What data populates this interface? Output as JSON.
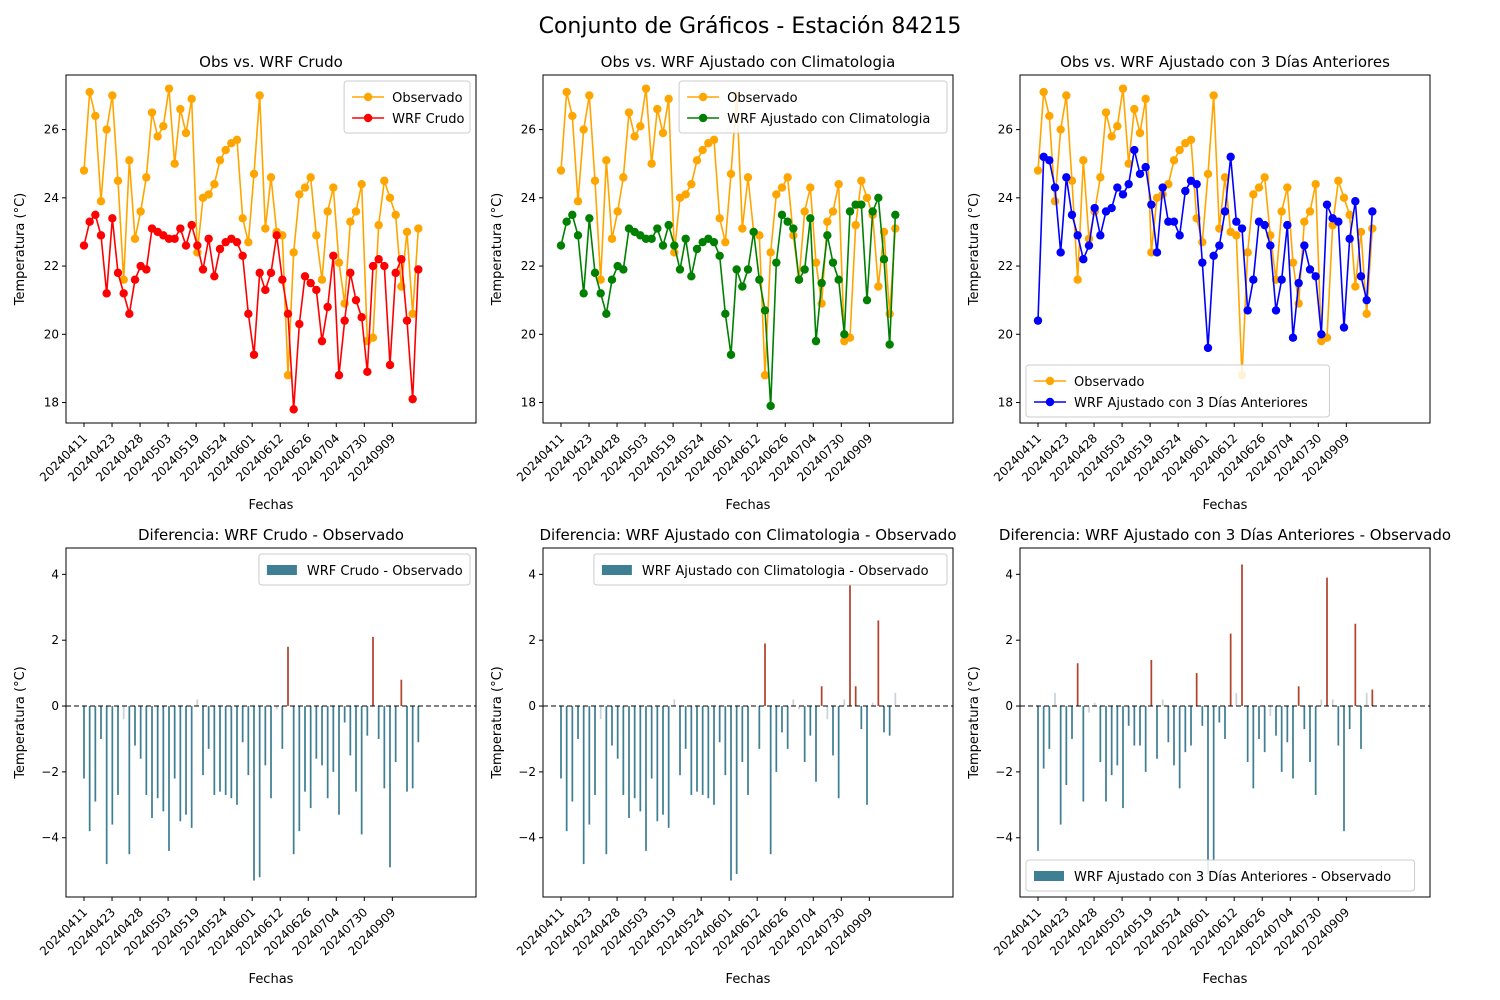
{
  "figure": {
    "title": "Conjunto de Gráficos - Estación 84215"
  },
  "colors": {
    "observed": "#ffa500",
    "raw": "#ff0000",
    "clim": "#008000",
    "prev3": "#0000ff",
    "bar_neg": "#3f7f93",
    "bar_pos": "#b2432f",
    "bar_light": "#c9d4d8"
  },
  "ticks": {
    "dates": [
      "20240411",
      "20240423",
      "20240428",
      "20240503",
      "20240519",
      "20240524",
      "20240601",
      "20240612",
      "20240626",
      "20240704",
      "20240730",
      "20240909"
    ],
    "line_y": [
      "18",
      "20",
      "22",
      "24",
      "26"
    ],
    "bar_y": [
      "−4",
      "−2",
      "0",
      "2",
      "4"
    ]
  },
  "chart_data": [
    {
      "type": "line",
      "title": "Obs vs. WRF Crudo",
      "xlabel": "Fechas",
      "ylabel": "Temperatura (°C)",
      "ylim": [
        17.4,
        27.6
      ],
      "legend_position": "upper right",
      "series": [
        {
          "name": "Observado",
          "color": "#ffa500",
          "values": [
            24.8,
            27.1,
            26.4,
            23.9,
            26.0,
            27.0,
            24.5,
            21.6,
            25.1,
            22.8,
            23.6,
            24.6,
            26.5,
            25.8,
            26.1,
            27.2,
            25.0,
            26.6,
            25.9,
            26.9,
            22.4,
            24.0,
            24.1,
            24.4,
            25.1,
            25.4,
            25.6,
            25.7,
            23.4,
            22.7,
            24.7,
            27.0,
            23.1,
            24.6,
            23.0,
            22.9,
            18.8,
            22.4,
            24.1,
            24.3,
            24.6,
            22.9,
            21.6,
            23.6,
            24.3,
            22.1,
            20.9,
            23.3,
            23.6,
            24.4,
            19.8,
            19.9,
            23.2,
            24.5,
            24.0,
            23.5,
            21.4,
            23.0,
            20.6,
            23.1
          ]
        },
        {
          "name": "WRF Crudo",
          "color": "#ff0000",
          "values": [
            22.6,
            23.3,
            23.5,
            22.9,
            21.2,
            23.4,
            21.8,
            21.2,
            20.6,
            21.6,
            22.0,
            21.9,
            23.1,
            23.0,
            22.9,
            22.8,
            22.8,
            23.1,
            22.6,
            23.2,
            22.6,
            21.9,
            22.8,
            21.7,
            22.5,
            22.7,
            22.8,
            22.7,
            22.3,
            20.6,
            19.4,
            21.8,
            21.3,
            21.8,
            22.9,
            21.6,
            20.6,
            17.8,
            20.3,
            21.7,
            21.5,
            21.3,
            19.8,
            20.8,
            22.3,
            18.8,
            20.4,
            21.8,
            21.0,
            20.5,
            18.9,
            22.0,
            22.2,
            22.0,
            19.1,
            21.8,
            22.2,
            20.4,
            18.1,
            21.9
          ]
        }
      ]
    },
    {
      "type": "line",
      "title": "Obs vs. WRF Ajustado con Climatologia",
      "xlabel": "Fechas",
      "ylabel": "Temperatura (°C)",
      "ylim": [
        17.4,
        27.6
      ],
      "legend_position": "upper right",
      "series": [
        {
          "name": "Observado",
          "color": "#ffa500",
          "values": [
            24.8,
            27.1,
            26.4,
            23.9,
            26.0,
            27.0,
            24.5,
            21.6,
            25.1,
            22.8,
            23.6,
            24.6,
            26.5,
            25.8,
            26.1,
            27.2,
            25.0,
            26.6,
            25.9,
            26.9,
            22.4,
            24.0,
            24.1,
            24.4,
            25.1,
            25.4,
            25.6,
            25.7,
            23.4,
            22.7,
            24.7,
            27.0,
            23.1,
            24.6,
            23.0,
            22.9,
            18.8,
            22.4,
            24.1,
            24.3,
            24.6,
            22.9,
            21.6,
            23.6,
            24.3,
            22.1,
            20.9,
            23.3,
            23.6,
            24.4,
            19.8,
            19.9,
            23.2,
            24.5,
            24.0,
            23.5,
            21.4,
            23.0,
            20.6,
            23.1
          ]
        },
        {
          "name": "WRF Ajustado con Climatologia",
          "color": "#008000",
          "values": [
            22.6,
            23.3,
            23.5,
            22.9,
            21.2,
            23.4,
            21.8,
            21.2,
            20.6,
            21.6,
            22.0,
            21.9,
            23.1,
            23.0,
            22.9,
            22.8,
            22.8,
            23.1,
            22.6,
            23.2,
            22.6,
            21.9,
            22.8,
            21.7,
            22.5,
            22.7,
            22.8,
            22.7,
            22.3,
            20.6,
            19.4,
            21.9,
            21.4,
            21.9,
            23.0,
            21.6,
            20.7,
            17.9,
            22.1,
            23.5,
            23.3,
            23.1,
            21.6,
            21.9,
            23.4,
            19.8,
            21.5,
            22.9,
            22.1,
            21.6,
            20.0,
            23.6,
            23.8,
            23.8,
            21.0,
            23.6,
            24.0,
            22.2,
            19.7,
            23.5
          ]
        }
      ]
    },
    {
      "type": "line",
      "title": "Obs vs. WRF Ajustado con 3 Días Anteriores",
      "xlabel": "Fechas",
      "ylabel": "Temperatura (°C)",
      "ylim": [
        17.4,
        27.6
      ],
      "legend_position": "lower left",
      "series": [
        {
          "name": "Observado",
          "color": "#ffa500",
          "values": [
            24.8,
            27.1,
            26.4,
            23.9,
            26.0,
            27.0,
            24.5,
            21.6,
            25.1,
            22.8,
            23.6,
            24.6,
            26.5,
            25.8,
            26.1,
            27.2,
            25.0,
            26.6,
            25.9,
            26.9,
            22.4,
            24.0,
            24.1,
            24.4,
            25.1,
            25.4,
            25.6,
            25.7,
            23.4,
            22.7,
            24.7,
            27.0,
            23.1,
            24.6,
            23.0,
            22.9,
            18.8,
            22.4,
            24.1,
            24.3,
            24.6,
            22.9,
            21.6,
            23.6,
            24.3,
            22.1,
            20.9,
            23.3,
            23.6,
            24.4,
            19.8,
            19.9,
            23.2,
            24.5,
            24.0,
            23.5,
            21.4,
            23.0,
            20.6,
            23.1
          ]
        },
        {
          "name": "WRF Ajustado con 3 Días Anteriores",
          "color": "#0000ff",
          "values": [
            20.4,
            25.2,
            25.1,
            24.3,
            22.4,
            24.6,
            23.5,
            22.9,
            22.2,
            22.6,
            23.7,
            22.9,
            23.6,
            23.7,
            24.3,
            24.1,
            24.4,
            25.4,
            24.7,
            24.9,
            23.8,
            22.4,
            24.3,
            23.3,
            23.3,
            22.9,
            24.2,
            24.5,
            24.4,
            22.1,
            19.6,
            22.3,
            22.6,
            23.6,
            25.2,
            23.3,
            23.1,
            20.7,
            21.6,
            23.3,
            23.2,
            22.6,
            20.7,
            21.6,
            23.2,
            19.9,
            21.5,
            22.6,
            21.9,
            21.7,
            20.0,
            23.8,
            23.4,
            23.3,
            20.2,
            22.8,
            23.9,
            21.7,
            21.0,
            23.6
          ]
        }
      ]
    },
    {
      "type": "bar",
      "title": "Diferencia: WRF Crudo - Observado",
      "xlabel": "Fechas",
      "ylabel": "Temperatura (°C)",
      "ylim": [
        -5.8,
        4.8
      ],
      "legend_position": "upper right",
      "series": [
        {
          "name": "WRF Crudo - Observado",
          "values": [
            -2.2,
            -3.8,
            -2.9,
            -1.0,
            -4.8,
            -3.6,
            -2.7,
            -0.4,
            -4.5,
            -1.2,
            -1.6,
            -2.7,
            -3.4,
            -2.8,
            -3.2,
            -4.4,
            -2.2,
            -3.5,
            -3.3,
            -3.7,
            0.2,
            -2.1,
            -1.3,
            -2.7,
            -2.6,
            -2.7,
            -2.8,
            -3.0,
            -1.1,
            -2.1,
            -5.3,
            -5.2,
            -1.8,
            -2.8,
            -0.1,
            -1.3,
            1.8,
            -4.5,
            -3.8,
            -2.6,
            -3.1,
            -1.6,
            -1.8,
            -2.8,
            -2.0,
            -3.3,
            -0.5,
            -1.5,
            -2.6,
            -3.9,
            -0.9,
            2.1,
            -1.0,
            -2.5,
            -4.9,
            -1.7,
            0.8,
            -2.6,
            -2.5,
            -1.1
          ]
        }
      ]
    },
    {
      "type": "bar",
      "title": "Diferencia: WRF Ajustado con Climatologia - Observado",
      "xlabel": "Fechas",
      "ylabel": "Temperatura (°C)",
      "ylim": [
        -5.8,
        4.8
      ],
      "legend_position": "upper right",
      "series": [
        {
          "name": "WRF Ajustado con Climatologia - Observado",
          "values": [
            -2.2,
            -3.8,
            -2.9,
            -1.0,
            -4.8,
            -3.6,
            -2.7,
            -0.4,
            -4.5,
            -1.2,
            -1.6,
            -2.7,
            -3.4,
            -2.8,
            -3.2,
            -4.4,
            -2.2,
            -3.5,
            -3.3,
            -3.7,
            0.2,
            -2.1,
            -1.3,
            -2.7,
            -2.6,
            -2.7,
            -2.8,
            -3.0,
            -1.1,
            -2.1,
            -5.3,
            -5.1,
            -1.7,
            -2.7,
            0.0,
            -1.3,
            1.9,
            -4.5,
            -2.0,
            -0.8,
            -1.3,
            0.2,
            -0.1,
            -1.7,
            -0.9,
            -2.3,
            0.6,
            -0.4,
            -1.5,
            -2.8,
            0.2,
            3.7,
            0.6,
            -0.7,
            -3.0,
            0.1,
            2.6,
            -0.8,
            -0.9,
            0.4
          ]
        }
      ]
    },
    {
      "type": "bar",
      "title": "Diferencia: WRF Ajustado con 3 Días Anteriores - Observado",
      "xlabel": "Fechas",
      "ylabel": "Temperatura (°C)",
      "ylim": [
        -5.8,
        4.8
      ],
      "legend_position": "lower left",
      "series": [
        {
          "name": "WRF Ajustado con 3 Días Anteriores - Observado",
          "values": [
            -4.4,
            -1.9,
            -1.3,
            0.4,
            -3.6,
            -2.4,
            -1.0,
            1.3,
            -2.9,
            -0.2,
            0.1,
            -1.7,
            -2.9,
            -2.1,
            -1.8,
            -3.1,
            -0.6,
            -1.2,
            -1.2,
            -2.0,
            1.4,
            -1.6,
            0.2,
            -1.1,
            -1.8,
            -2.5,
            -1.4,
            -1.2,
            1.0,
            -0.6,
            -5.1,
            -4.7,
            -0.5,
            -1.0,
            2.2,
            0.4,
            4.3,
            -1.7,
            -2.5,
            -1.0,
            -1.4,
            -0.3,
            -0.9,
            -2.0,
            -1.1,
            -2.2,
            0.6,
            -0.7,
            -1.7,
            -2.7,
            0.2,
            3.9,
            0.2,
            -1.2,
            -3.8,
            -0.7,
            2.5,
            -1.3,
            0.4,
            0.5
          ]
        }
      ]
    }
  ]
}
